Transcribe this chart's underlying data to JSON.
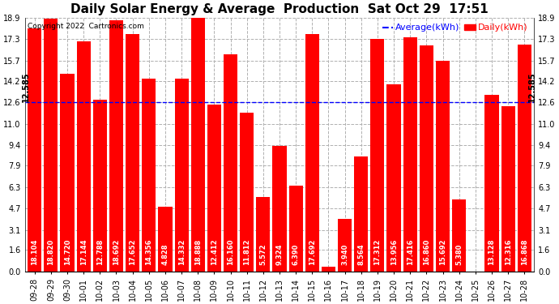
{
  "title": "Daily Solar Energy & Average  Production  Sat Oct 29  17:51",
  "copyright": "Copyright 2022  Cartronics.com",
  "legend_avg": "Average(kWh)",
  "legend_daily": "Daily(kWh)",
  "categories": [
    "09-28",
    "09-29",
    "09-30",
    "10-01",
    "10-02",
    "10-03",
    "10-04",
    "10-05",
    "10-06",
    "10-07",
    "10-08",
    "10-09",
    "10-10",
    "10-11",
    "10-12",
    "10-13",
    "10-14",
    "10-15",
    "10-16",
    "10-17",
    "10-18",
    "10-19",
    "10-20",
    "10-21",
    "10-22",
    "10-23",
    "10-24",
    "10-25",
    "10-26",
    "10-27",
    "10-28"
  ],
  "values": [
    18.104,
    18.82,
    14.72,
    17.144,
    12.788,
    18.692,
    17.652,
    14.356,
    4.828,
    14.332,
    18.888,
    12.412,
    16.16,
    11.812,
    5.572,
    9.324,
    6.39,
    17.692,
    0.388,
    3.94,
    8.564,
    17.312,
    13.956,
    17.416,
    16.86,
    15.692,
    5.38,
    0.0,
    13.128,
    12.316,
    16.868
  ],
  "average": 12.585,
  "bar_color": "#ff0000",
  "avg_line_color": "#0000ff",
  "background_color": "#ffffff",
  "plot_bg_color": "#ffffff",
  "grid_color": "#b0b0b0",
  "title_color": "#000000",
  "bar_label_color": "#ffffff",
  "avg_label_color": "#0000ff",
  "daily_label_color": "#ff0000",
  "avg_side_label_color": "#000000",
  "ylim": [
    0.0,
    18.9
  ],
  "yticks": [
    0.0,
    1.6,
    3.1,
    4.7,
    6.3,
    7.9,
    9.4,
    11.0,
    12.6,
    14.2,
    15.7,
    17.3,
    18.9
  ],
  "avg_label": "12.585",
  "title_fontsize": 11,
  "copyright_fontsize": 6.5,
  "tick_fontsize": 7,
  "bar_label_fontsize": 6,
  "legend_fontsize": 8
}
